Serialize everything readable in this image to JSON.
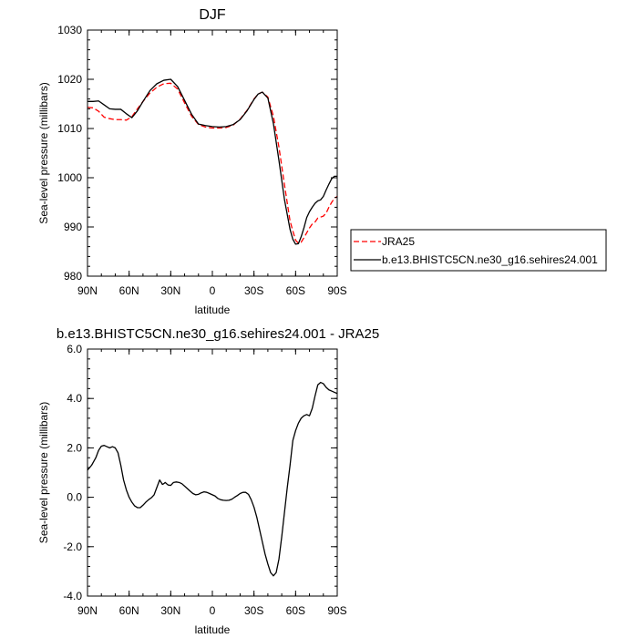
{
  "chart_data": [
    {
      "type": "line",
      "title": "DJF",
      "xlabel": "latitude",
      "ylabel": "Sea-level pressure (millibars)",
      "xlim": [
        90,
        -90
      ],
      "ylim": [
        980,
        1030
      ],
      "x_ticks": [
        {
          "value": 90,
          "label": "90N"
        },
        {
          "value": 60,
          "label": "60N"
        },
        {
          "value": 30,
          "label": "30N"
        },
        {
          "value": 0,
          "label": "0"
        },
        {
          "value": -30,
          "label": "30S"
        },
        {
          "value": -60,
          "label": "60S"
        },
        {
          "value": -90,
          "label": "90S"
        }
      ],
      "y_ticks": [
        {
          "value": 980,
          "label": "980"
        },
        {
          "value": 990,
          "label": "990"
        },
        {
          "value": 1000,
          "label": "1000"
        },
        {
          "value": 1010,
          "label": "1010"
        },
        {
          "value": 1020,
          "label": "1020"
        },
        {
          "value": 1030,
          "label": "1030"
        }
      ],
      "legend": "outside-right",
      "series": [
        {
          "name": "JRA25",
          "color": "#ff0000",
          "dash": true,
          "x": [
            90,
            86,
            82,
            78,
            74,
            70,
            66,
            62,
            58,
            54,
            50,
            45,
            40,
            35,
            30,
            25,
            20,
            15,
            10,
            5,
            0,
            -5,
            -10,
            -15,
            -20,
            -25,
            -30,
            -33,
            -36,
            -40,
            -44,
            -48,
            -52,
            -56,
            -58,
            -60,
            -62,
            -64,
            -66,
            -68,
            -70,
            -72,
            -74,
            -76,
            -78,
            -80,
            -82,
            -84,
            -86,
            -88,
            -90
          ],
          "y": [
            1014.3,
            1014.2,
            1013.5,
            1012.3,
            1012.0,
            1011.8,
            1011.8,
            1011.7,
            1012.4,
            1014.0,
            1015.5,
            1017.2,
            1018.4,
            1019.1,
            1019.2,
            1018.0,
            1015.2,
            1012.5,
            1010.8,
            1010.3,
            1010.1,
            1010.1,
            1010.2,
            1010.7,
            1011.9,
            1013.7,
            1016.0,
            1017.0,
            1017.4,
            1016.4,
            1012.5,
            1006.2,
            998.5,
            991.2,
            989.2,
            987.3,
            986.7,
            986.9,
            987.8,
            988.8,
            989.8,
            990.6,
            991.0,
            991.8,
            992.0,
            992.2,
            992.8,
            994.0,
            995.0,
            995.8,
            996.2
          ]
        },
        {
          "name": "b.e13.BHISTC5CN.ne30_g16.sehires24.001",
          "color": "#000000",
          "dash": false,
          "x": [
            90,
            86,
            82,
            78,
            74,
            70,
            66,
            62,
            58,
            54,
            50,
            45,
            40,
            35,
            30,
            25,
            20,
            15,
            10,
            5,
            0,
            -5,
            -10,
            -15,
            -20,
            -25,
            -30,
            -33,
            -36,
            -40,
            -44,
            -48,
            -52,
            -56,
            -58,
            -60,
            -62,
            -64,
            -66,
            -68,
            -70,
            -72,
            -74,
            -76,
            -78,
            -80,
            -82,
            -84,
            -86,
            -88,
            -90
          ],
          "y": [
            1015.5,
            1015.5,
            1015.6,
            1014.8,
            1014.0,
            1013.9,
            1013.9,
            1013.0,
            1012.2,
            1013.6,
            1015.5,
            1017.7,
            1019.1,
            1019.8,
            1020.0,
            1018.5,
            1015.7,
            1012.9,
            1010.9,
            1010.6,
            1010.4,
            1010.3,
            1010.4,
            1010.8,
            1011.8,
            1013.6,
            1015.9,
            1017.0,
            1017.4,
            1016.2,
            1011.0,
            1003.5,
            995.5,
            989.5,
            987.5,
            986.5,
            986.6,
            988.0,
            989.8,
            991.9,
            993.1,
            994.0,
            994.8,
            995.3,
            995.5,
            996.2,
            997.5,
            998.7,
            999.8,
            1000.3,
            1000.3
          ]
        }
      ]
    },
    {
      "type": "line",
      "title": "b.e13.BHISTC5CN.ne30_g16.sehires24.001 - JRA25",
      "xlabel": "latitude",
      "ylabel": "Sea-level pressure (millibars)",
      "xlim": [
        90,
        -90
      ],
      "ylim": [
        -4,
        6
      ],
      "x_ticks": [
        {
          "value": 90,
          "label": "90N"
        },
        {
          "value": 60,
          "label": "60N"
        },
        {
          "value": 30,
          "label": "30N"
        },
        {
          "value": 0,
          "label": "0"
        },
        {
          "value": -30,
          "label": "30S"
        },
        {
          "value": -60,
          "label": "60S"
        },
        {
          "value": -90,
          "label": "90S"
        }
      ],
      "y_ticks": [
        {
          "value": -4,
          "label": "-4.0"
        },
        {
          "value": -2,
          "label": "-2.0"
        },
        {
          "value": 0,
          "label": "0.0"
        },
        {
          "value": 2,
          "label": "2.0"
        },
        {
          "value": 4,
          "label": "4.0"
        },
        {
          "value": 6,
          "label": "6.0"
        }
      ],
      "series": [
        {
          "color": "#000000",
          "dash": false,
          "x": [
            90,
            87,
            84,
            82,
            80,
            78,
            76,
            74,
            72,
            70,
            68,
            66,
            64,
            62,
            60,
            58,
            56,
            54,
            52,
            50,
            48,
            46,
            44,
            42,
            40,
            38,
            36,
            35,
            34,
            32,
            30,
            28,
            26,
            24,
            22,
            20,
            18,
            16,
            14,
            12,
            10,
            8,
            6,
            4,
            2,
            0,
            -2,
            -4,
            -6,
            -8,
            -10,
            -12,
            -14,
            -16,
            -18,
            -20,
            -22,
            -24,
            -26,
            -28,
            -30,
            -32,
            -34,
            -36,
            -38,
            -40,
            -42,
            -44,
            -46,
            -48,
            -50,
            -52,
            -54,
            -56,
            -58,
            -60,
            -62,
            -64,
            -66,
            -68,
            -70,
            -72,
            -74,
            -76,
            -78,
            -80,
            -82,
            -84,
            -86,
            -88,
            -90
          ],
          "y": [
            1.1,
            1.3,
            1.6,
            1.9,
            2.07,
            2.1,
            2.05,
            2.0,
            2.05,
            2.0,
            1.8,
            1.3,
            0.7,
            0.3,
            0.0,
            -0.2,
            -0.35,
            -0.42,
            -0.42,
            -0.32,
            -0.2,
            -0.1,
            -0.02,
            0.1,
            0.4,
            0.7,
            0.52,
            0.55,
            0.6,
            0.5,
            0.48,
            0.6,
            0.62,
            0.6,
            0.55,
            0.45,
            0.35,
            0.25,
            0.15,
            0.1,
            0.12,
            0.18,
            0.22,
            0.2,
            0.15,
            0.1,
            0.05,
            -0.05,
            -0.1,
            -0.12,
            -0.13,
            -0.12,
            -0.08,
            0.0,
            0.07,
            0.15,
            0.2,
            0.2,
            0.12,
            -0.1,
            -0.4,
            -0.8,
            -1.3,
            -1.8,
            -2.3,
            -2.7,
            -3.05,
            -3.18,
            -3.05,
            -2.5,
            -1.6,
            -0.6,
            0.4,
            1.3,
            2.3,
            2.7,
            3.0,
            3.2,
            3.3,
            3.35,
            3.3,
            3.6,
            4.1,
            4.55,
            4.65,
            4.6,
            4.45,
            4.35,
            4.3,
            4.25,
            4.2
          ]
        }
      ]
    }
  ]
}
